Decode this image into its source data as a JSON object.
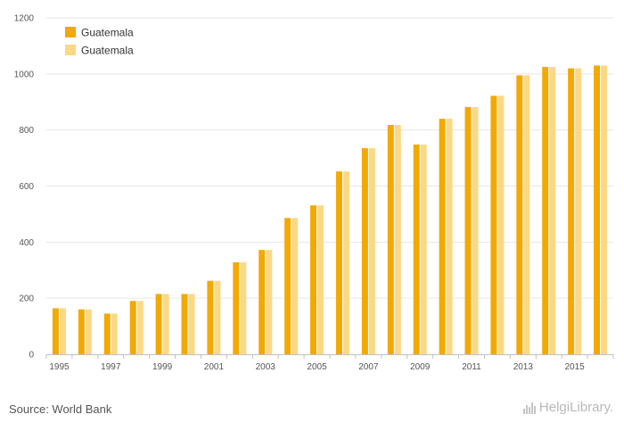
{
  "source": "Source: World Bank",
  "logo": {
    "part1": "Helgi",
    "part2": "Library."
  },
  "colors": {
    "primary": "#f2a900",
    "secondary": "#fbd984",
    "grid": "#e6e6e6",
    "axis": "#c0c0c0"
  },
  "chart_data": {
    "type": "bar",
    "title": "",
    "xlabel": "",
    "ylabel": "",
    "ylim": [
      0,
      1200
    ],
    "yticks": [
      0,
      200,
      400,
      600,
      800,
      1000,
      1200
    ],
    "grid": true,
    "legend_position": "top-left",
    "categories": [
      "1995",
      "1996",
      "1997",
      "1998",
      "1999",
      "2000",
      "2001",
      "2002",
      "2003",
      "2004",
      "2005",
      "2006",
      "2007",
      "2008",
      "2009",
      "2010",
      "2011",
      "2012",
      "2013",
      "2014",
      "2015",
      "2016"
    ],
    "xtick_labels": [
      "1995",
      "1997",
      "1999",
      "2001",
      "2003",
      "2005",
      "2007",
      "2009",
      "2011",
      "2013",
      "2015"
    ],
    "series": [
      {
        "name": "Guatemala",
        "color": "#f2a900",
        "values": [
          164,
          160,
          145,
          190,
          215,
          215,
          262,
          328,
          372,
          486,
          531,
          652,
          735,
          818,
          748,
          840,
          882,
          922,
          995,
          1025,
          1020,
          1030
        ]
      },
      {
        "name": "Guatemala",
        "color": "#fbd984",
        "values": [
          164,
          160,
          145,
          190,
          215,
          215,
          262,
          328,
          372,
          486,
          531,
          652,
          735,
          818,
          748,
          840,
          882,
          922,
          995,
          1025,
          1020,
          1030
        ]
      }
    ]
  }
}
